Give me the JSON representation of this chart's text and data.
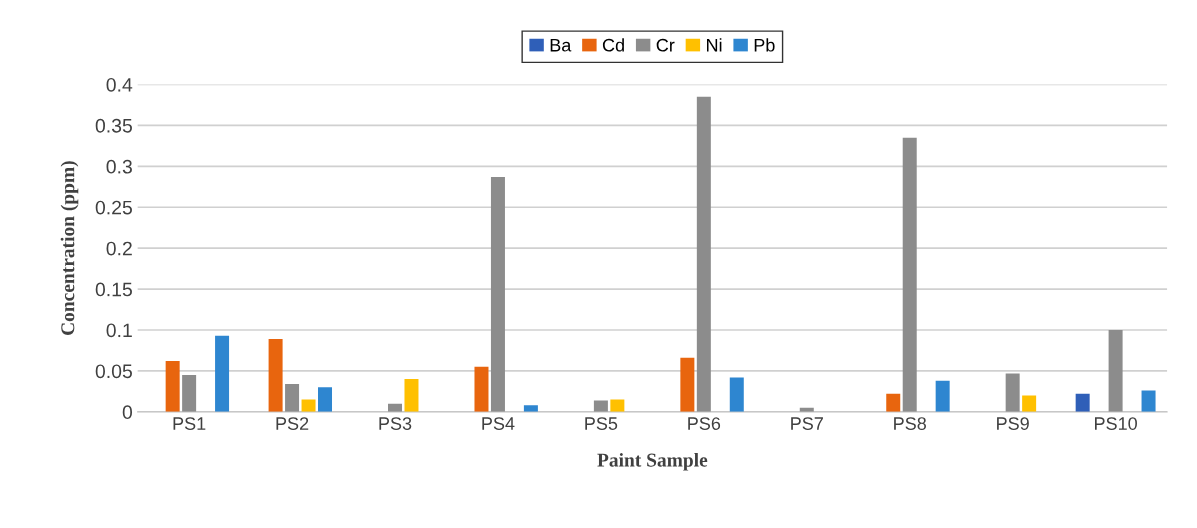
{
  "chart_data": {
    "type": "bar",
    "xlabel": "Paint Sample",
    "ylabel": "Concentration (ppm)",
    "categories": [
      "PS1",
      "PS2",
      "PS3",
      "PS4",
      "PS5",
      "PS6",
      "PS7",
      "PS8",
      "PS9",
      "PS10"
    ],
    "series": [
      {
        "name": "Ba",
        "color": "#2f5fb8",
        "values": [
          0,
          0,
          0,
          0,
          0,
          0,
          0,
          0,
          0,
          0.022
        ]
      },
      {
        "name": "Cd",
        "color": "#e8650e",
        "values": [
          0.062,
          0.089,
          0,
          0.055,
          0,
          0.066,
          0,
          0.022,
          0,
          0
        ]
      },
      {
        "name": "Cr",
        "color": "#8c8c8c",
        "values": [
          0.045,
          0.034,
          0.01,
          0.287,
          0.014,
          0.385,
          0.005,
          0.335,
          0.047,
          0.1
        ]
      },
      {
        "name": "Ni",
        "color": "#ffc000",
        "values": [
          0,
          0.015,
          0.04,
          0,
          0.015,
          0,
          0,
          0,
          0.02,
          0
        ]
      },
      {
        "name": "Pb",
        "color": "#2e86d0",
        "values": [
          0.093,
          0.03,
          0,
          0.008,
          0,
          0.042,
          0,
          0.038,
          0,
          0.026
        ]
      }
    ],
    "ylim": [
      0,
      0.4
    ],
    "yticks": [
      0,
      0.05,
      0.1,
      0.15,
      0.2,
      0.25,
      0.3,
      0.35,
      0.4
    ],
    "grid": "y",
    "legend": "top"
  }
}
